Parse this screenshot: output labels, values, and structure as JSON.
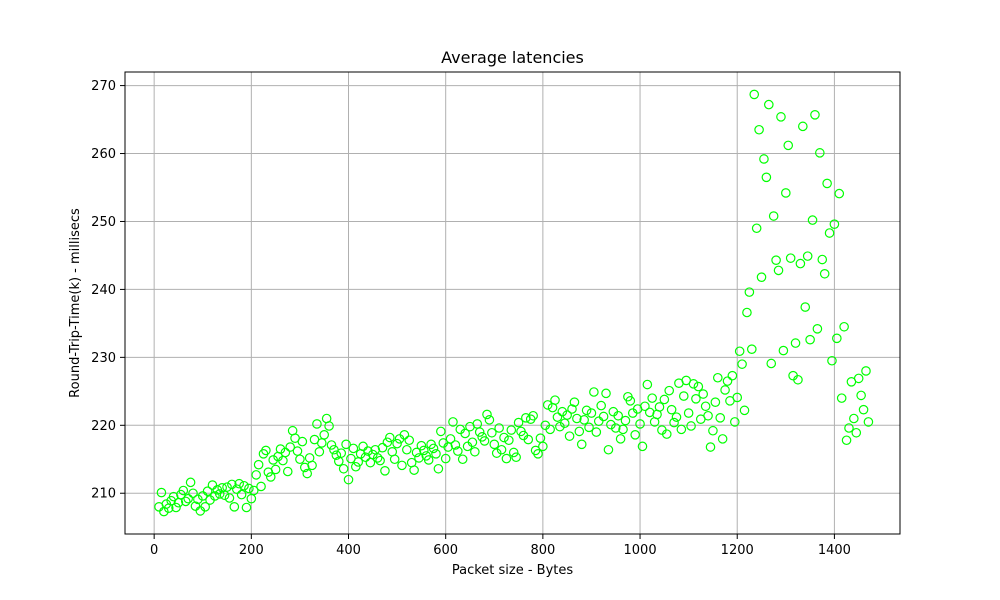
{
  "chart_data": {
    "type": "scatter",
    "title": "Average latencies",
    "xlabel": "Packet size - Bytes",
    "ylabel": "Round-Trip-Time(k) - millisecs",
    "xlim": [
      -60,
      1535
    ],
    "ylim": [
      204,
      272
    ],
    "xticks": [
      0,
      200,
      400,
      600,
      800,
      1000,
      1200,
      1400
    ],
    "yticks": [
      210,
      220,
      230,
      240,
      250,
      260,
      270
    ],
    "grid": true,
    "marker": "open-circle",
    "marker_color": "#00ff00",
    "series": [
      {
        "name": "",
        "points": [
          [
            10,
            208.0
          ],
          [
            15,
            210.1
          ],
          [
            20,
            207.3
          ],
          [
            25,
            208.4
          ],
          [
            30,
            207.8
          ],
          [
            35,
            208.9
          ],
          [
            40,
            209.5
          ],
          [
            45,
            207.9
          ],
          [
            50,
            208.6
          ],
          [
            55,
            209.8
          ],
          [
            60,
            210.4
          ],
          [
            65,
            208.8
          ],
          [
            70,
            209.2
          ],
          [
            75,
            211.6
          ],
          [
            80,
            210.0
          ],
          [
            85,
            208.1
          ],
          [
            90,
            209.1
          ],
          [
            95,
            207.4
          ],
          [
            100,
            209.6
          ],
          [
            105,
            208.0
          ],
          [
            110,
            210.3
          ],
          [
            115,
            209.0
          ],
          [
            120,
            211.2
          ],
          [
            125,
            209.6
          ],
          [
            130,
            210.5
          ],
          [
            135,
            209.9
          ],
          [
            140,
            210.8
          ],
          [
            145,
            209.7
          ],
          [
            150,
            210.9
          ],
          [
            155,
            209.3
          ],
          [
            160,
            211.3
          ],
          [
            165,
            208.0
          ],
          [
            170,
            210.6
          ],
          [
            175,
            211.4
          ],
          [
            180,
            209.8
          ],
          [
            185,
            211.1
          ],
          [
            190,
            207.9
          ],
          [
            195,
            210.7
          ],
          [
            200,
            209.2
          ],
          [
            205,
            210.4
          ],
          [
            210,
            212.7
          ],
          [
            215,
            214.2
          ],
          [
            220,
            211.0
          ],
          [
            225,
            215.8
          ],
          [
            230,
            216.3
          ],
          [
            235,
            213.1
          ],
          [
            240,
            212.4
          ],
          [
            245,
            214.9
          ],
          [
            250,
            213.5
          ],
          [
            255,
            215.4
          ],
          [
            260,
            216.5
          ],
          [
            265,
            214.8
          ],
          [
            270,
            216.0
          ],
          [
            275,
            213.2
          ],
          [
            280,
            216.8
          ],
          [
            285,
            219.2
          ],
          [
            290,
            218.1
          ],
          [
            295,
            216.2
          ],
          [
            300,
            215.0
          ],
          [
            305,
            217.6
          ],
          [
            310,
            213.8
          ],
          [
            315,
            212.9
          ],
          [
            320,
            215.2
          ],
          [
            325,
            214.1
          ],
          [
            330,
            217.9
          ],
          [
            335,
            220.2
          ],
          [
            340,
            216.1
          ],
          [
            345,
            217.4
          ],
          [
            350,
            218.6
          ],
          [
            355,
            221.0
          ],
          [
            360,
            219.9
          ],
          [
            365,
            217.1
          ],
          [
            370,
            216.4
          ],
          [
            375,
            215.6
          ],
          [
            380,
            214.7
          ],
          [
            385,
            215.9
          ],
          [
            390,
            213.6
          ],
          [
            395,
            217.2
          ],
          [
            400,
            212.0
          ],
          [
            405,
            215.1
          ],
          [
            410,
            216.6
          ],
          [
            415,
            213.9
          ],
          [
            420,
            214.6
          ],
          [
            425,
            215.8
          ],
          [
            430,
            216.9
          ],
          [
            435,
            215.3
          ],
          [
            440,
            216.2
          ],
          [
            445,
            214.5
          ],
          [
            450,
            215.7
          ],
          [
            455,
            216.4
          ],
          [
            460,
            215.2
          ],
          [
            465,
            214.8
          ],
          [
            470,
            216.7
          ],
          [
            475,
            213.3
          ],
          [
            480,
            217.5
          ],
          [
            485,
            218.2
          ],
          [
            490,
            216.1
          ],
          [
            495,
            215.0
          ],
          [
            500,
            217.3
          ],
          [
            505,
            218.0
          ],
          [
            510,
            214.1
          ],
          [
            515,
            218.6
          ],
          [
            520,
            216.4
          ],
          [
            525,
            217.8
          ],
          [
            530,
            214.5
          ],
          [
            535,
            213.4
          ],
          [
            540,
            216.0
          ],
          [
            545,
            215.2
          ],
          [
            550,
            217.0
          ],
          [
            555,
            216.3
          ],
          [
            560,
            215.5
          ],
          [
            565,
            214.9
          ],
          [
            570,
            217.2
          ],
          [
            575,
            216.6
          ],
          [
            580,
            215.8
          ],
          [
            585,
            213.6
          ],
          [
            590,
            219.1
          ],
          [
            595,
            217.4
          ],
          [
            600,
            215.1
          ],
          [
            605,
            216.8
          ],
          [
            610,
            218.0
          ],
          [
            615,
            220.5
          ],
          [
            620,
            217.1
          ],
          [
            625,
            216.2
          ],
          [
            630,
            219.4
          ],
          [
            635,
            215.0
          ],
          [
            640,
            218.8
          ],
          [
            645,
            216.9
          ],
          [
            650,
            219.8
          ],
          [
            655,
            217.5
          ],
          [
            660,
            216.1
          ],
          [
            665,
            220.2
          ],
          [
            670,
            219.0
          ],
          [
            675,
            218.3
          ],
          [
            680,
            217.7
          ],
          [
            685,
            221.6
          ],
          [
            690,
            220.8
          ],
          [
            695,
            218.9
          ],
          [
            700,
            217.2
          ],
          [
            705,
            215.9
          ],
          [
            710,
            219.6
          ],
          [
            715,
            216.4
          ],
          [
            720,
            218.2
          ],
          [
            725,
            215.1
          ],
          [
            730,
            217.8
          ],
          [
            735,
            219.3
          ],
          [
            740,
            216.0
          ],
          [
            745,
            215.3
          ],
          [
            750,
            220.4
          ],
          [
            755,
            219.1
          ],
          [
            760,
            218.5
          ],
          [
            765,
            221.1
          ],
          [
            770,
            217.9
          ],
          [
            775,
            220.9
          ],
          [
            780,
            221.4
          ],
          [
            785,
            216.3
          ],
          [
            790,
            215.8
          ],
          [
            795,
            218.1
          ],
          [
            800,
            216.9
          ],
          [
            805,
            220.0
          ],
          [
            810,
            223.0
          ],
          [
            815,
            219.4
          ],
          [
            820,
            222.6
          ],
          [
            825,
            223.7
          ],
          [
            830,
            221.2
          ],
          [
            835,
            219.8
          ],
          [
            840,
            222.0
          ],
          [
            845,
            220.3
          ],
          [
            850,
            221.5
          ],
          [
            855,
            218.4
          ],
          [
            860,
            222.4
          ],
          [
            865,
            223.4
          ],
          [
            870,
            221.0
          ],
          [
            875,
            219.1
          ],
          [
            880,
            217.2
          ],
          [
            885,
            220.8
          ],
          [
            890,
            222.2
          ],
          [
            895,
            219.7
          ],
          [
            900,
            221.8
          ],
          [
            905,
            224.9
          ],
          [
            910,
            219.0
          ],
          [
            915,
            220.6
          ],
          [
            920,
            222.9
          ],
          [
            925,
            221.3
          ],
          [
            930,
            224.7
          ],
          [
            935,
            216.4
          ],
          [
            940,
            220.1
          ],
          [
            945,
            222.0
          ],
          [
            950,
            219.6
          ],
          [
            955,
            221.4
          ],
          [
            960,
            218.0
          ],
          [
            965,
            219.4
          ],
          [
            970,
            220.7
          ],
          [
            975,
            224.2
          ],
          [
            980,
            223.6
          ],
          [
            985,
            221.8
          ],
          [
            990,
            218.6
          ],
          [
            995,
            222.4
          ],
          [
            1000,
            220.2
          ],
          [
            1005,
            216.9
          ],
          [
            1010,
            222.8
          ],
          [
            1015,
            226.0
          ],
          [
            1020,
            221.9
          ],
          [
            1025,
            224.0
          ],
          [
            1030,
            220.5
          ],
          [
            1035,
            221.6
          ],
          [
            1040,
            222.7
          ],
          [
            1045,
            219.3
          ],
          [
            1050,
            223.8
          ],
          [
            1055,
            218.7
          ],
          [
            1060,
            225.1
          ],
          [
            1065,
            222.3
          ],
          [
            1070,
            220.4
          ],
          [
            1075,
            221.2
          ],
          [
            1080,
            226.2
          ],
          [
            1085,
            219.4
          ],
          [
            1090,
            224.3
          ],
          [
            1095,
            226.6
          ],
          [
            1100,
            221.8
          ],
          [
            1105,
            219.9
          ],
          [
            1110,
            226.1
          ],
          [
            1115,
            223.9
          ],
          [
            1120,
            225.7
          ],
          [
            1125,
            220.9
          ],
          [
            1130,
            224.6
          ],
          [
            1135,
            222.8
          ],
          [
            1140,
            221.4
          ],
          [
            1145,
            216.8
          ],
          [
            1150,
            219.2
          ],
          [
            1155,
            223.4
          ],
          [
            1160,
            227.0
          ],
          [
            1165,
            221.1
          ],
          [
            1170,
            218.0
          ],
          [
            1175,
            225.2
          ],
          [
            1180,
            226.5
          ],
          [
            1185,
            223.6
          ],
          [
            1190,
            227.3
          ],
          [
            1195,
            220.5
          ],
          [
            1200,
            224.1
          ],
          [
            1205,
            230.9
          ],
          [
            1210,
            229.0
          ],
          [
            1215,
            222.2
          ],
          [
            1220,
            236.6
          ],
          [
            1225,
            239.6
          ],
          [
            1230,
            231.2
          ],
          [
            1235,
            268.7
          ],
          [
            1240,
            249.0
          ],
          [
            1245,
            263.5
          ],
          [
            1250,
            241.8
          ],
          [
            1255,
            259.2
          ],
          [
            1260,
            256.5
          ],
          [
            1265,
            267.2
          ],
          [
            1270,
            229.1
          ],
          [
            1275,
            250.8
          ],
          [
            1280,
            244.3
          ],
          [
            1285,
            242.8
          ],
          [
            1290,
            265.4
          ],
          [
            1295,
            231.0
          ],
          [
            1300,
            254.2
          ],
          [
            1305,
            261.2
          ],
          [
            1310,
            244.6
          ],
          [
            1315,
            227.3
          ],
          [
            1320,
            232.1
          ],
          [
            1325,
            226.7
          ],
          [
            1330,
            243.8
          ],
          [
            1335,
            264.0
          ],
          [
            1340,
            237.4
          ],
          [
            1345,
            244.9
          ],
          [
            1350,
            232.6
          ],
          [
            1355,
            250.2
          ],
          [
            1360,
            265.7
          ],
          [
            1365,
            234.2
          ],
          [
            1370,
            260.1
          ],
          [
            1375,
            244.4
          ],
          [
            1380,
            242.3
          ],
          [
            1385,
            255.6
          ],
          [
            1390,
            248.3
          ],
          [
            1395,
            229.5
          ],
          [
            1400,
            249.6
          ],
          [
            1405,
            232.8
          ],
          [
            1410,
            254.1
          ],
          [
            1415,
            224.0
          ],
          [
            1420,
            234.5
          ],
          [
            1425,
            217.8
          ],
          [
            1430,
            219.6
          ],
          [
            1435,
            226.4
          ],
          [
            1440,
            221.0
          ],
          [
            1445,
            218.9
          ],
          [
            1450,
            226.9
          ],
          [
            1455,
            224.4
          ],
          [
            1460,
            222.3
          ],
          [
            1465,
            228.0
          ],
          [
            1470,
            220.5
          ]
        ]
      }
    ]
  }
}
